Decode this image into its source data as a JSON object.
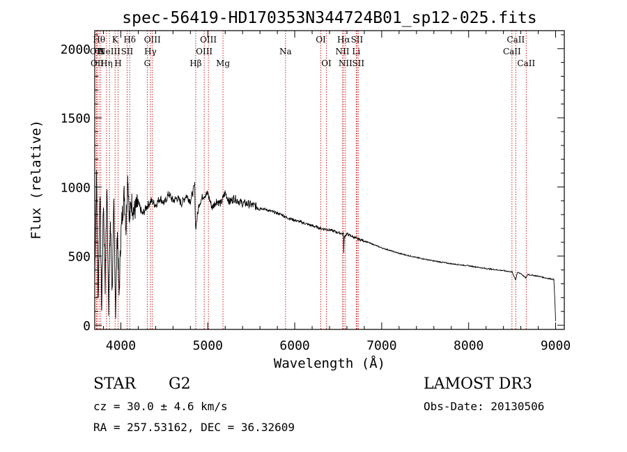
{
  "chart_data": {
    "type": "line",
    "title": "spec-56419-HD170353N344724B01_sp12-025.fits",
    "xlabel": "Wavelength (Å)",
    "ylabel": "Flux (relative)",
    "xlim": [
      3700,
      9100
    ],
    "ylim": [
      -30,
      2130
    ],
    "x_ticks": [
      4000,
      5000,
      6000,
      7000,
      8000,
      9000
    ],
    "x_minor_step": 200,
    "y_ticks": [
      0,
      500,
      1000,
      1500,
      2000
    ],
    "y_minor_step": 100,
    "series": [
      {
        "name": "spectrum",
        "x": [
          3700,
          3720,
          3740,
          3760,
          3780,
          3800,
          3820,
          3840,
          3860,
          3880,
          3900,
          3920,
          3940,
          3960,
          3980,
          4000,
          4020,
          4040,
          4060,
          4080,
          4100,
          4120,
          4150,
          4200,
          4250,
          4300,
          4350,
          4400,
          4450,
          4500,
          4550,
          4600,
          4650,
          4700,
          4750,
          4800,
          4850,
          4860,
          4900,
          4950,
          5000,
          5050,
          5100,
          5150,
          5200,
          5250,
          5300,
          5350,
          5400,
          5450,
          5500,
          5550,
          5600,
          5650,
          5700,
          5750,
          5800,
          5850,
          5900,
          5950,
          6000,
          6100,
          6200,
          6300,
          6400,
          6500,
          6560,
          6563,
          6570,
          6600,
          6700,
          6800,
          7000,
          7200,
          7400,
          7600,
          7800,
          8000,
          8200,
          8400,
          8500,
          8540,
          8560,
          8600,
          8660,
          8680,
          8700,
          8800,
          8900,
          8950,
          8980,
          8990,
          9000
        ],
        "y": [
          350,
          1050,
          200,
          980,
          120,
          900,
          300,
          1000,
          150,
          750,
          250,
          850,
          100,
          700,
          200,
          650,
          820,
          960,
          700,
          1100,
          750,
          900,
          820,
          880,
          800,
          860,
          900,
          870,
          920,
          880,
          950,
          900,
          920,
          880,
          940,
          900,
          1010,
          700,
          880,
          940,
          950,
          850,
          900,
          880,
          960,
          890,
          920,
          900,
          880,
          880,
          870,
          860,
          850,
          840,
          830,
          820,
          810,
          800,
          780,
          770,
          760,
          740,
          720,
          700,
          690,
          670,
          660,
          520,
          640,
          660,
          630,
          610,
          560,
          520,
          490,
          465,
          445,
          430,
          410,
          395,
          385,
          330,
          380,
          375,
          340,
          370,
          365,
          355,
          340,
          335,
          330,
          200,
          30
        ]
      }
    ],
    "annotations": [
      {
        "x": 3721,
        "row": 1,
        "text": "OII"
      },
      {
        "x": 3729,
        "row": 2,
        "text": "OII"
      },
      {
        "x": 3750,
        "row": 0,
        "text": "Hθ"
      },
      {
        "x": 3770,
        "row": 1,
        "text": "H"
      },
      {
        "x": 3835,
        "row": 2,
        "text": "Hη"
      },
      {
        "x": 3869,
        "row": 1,
        "text": "NeIII"
      },
      {
        "x": 3934,
        "row": 0,
        "text": "K"
      },
      {
        "x": 3968,
        "row": 2,
        "text": "H"
      },
      {
        "x": 4072,
        "row": 1,
        "text": "SII"
      },
      {
        "x": 4102,
        "row": 0,
        "text": "Hδ"
      },
      {
        "x": 4304,
        "row": 2,
        "text": "G"
      },
      {
        "x": 4340,
        "row": 1,
        "text": "Hγ"
      },
      {
        "x": 4363,
        "row": 0,
        "text": "OIII"
      },
      {
        "x": 4861,
        "row": 2,
        "text": "Hβ"
      },
      {
        "x": 4959,
        "row": 1,
        "text": "OIII"
      },
      {
        "x": 5007,
        "row": 0,
        "text": "OIII"
      },
      {
        "x": 5175,
        "row": 2,
        "text": "Mg"
      },
      {
        "x": 5894,
        "row": 1,
        "text": "Na"
      },
      {
        "x": 6300,
        "row": 0,
        "text": "OI"
      },
      {
        "x": 6364,
        "row": 2,
        "text": "OI"
      },
      {
        "x": 6548,
        "row": 1,
        "text": "NII"
      },
      {
        "x": 6563,
        "row": 0,
        "text": "Hα"
      },
      {
        "x": 6583,
        "row": 2,
        "text": "NII"
      },
      {
        "x": 6707,
        "row": 1,
        "text": "Li"
      },
      {
        "x": 6716,
        "row": 0,
        "text": "SII"
      },
      {
        "x": 6731,
        "row": 2,
        "text": "SII"
      },
      {
        "x": 8498,
        "row": 1,
        "text": "CaII"
      },
      {
        "x": 8542,
        "row": 0,
        "text": "CaII"
      },
      {
        "x": 8662,
        "row": 2,
        "text": "CaII"
      }
    ]
  },
  "info": {
    "object_type": "STAR",
    "subclass": "G2",
    "survey": "LAMOST DR3",
    "redshift": "cz = 30.0 ± 4.6 km/s",
    "obs_date": "Obs-Date: 20130506",
    "coords": "RA = 257.53162, DEC =  36.32609"
  },
  "colors": {
    "line": "#000000",
    "marker": "#cc0000",
    "background": "#ffffff"
  }
}
